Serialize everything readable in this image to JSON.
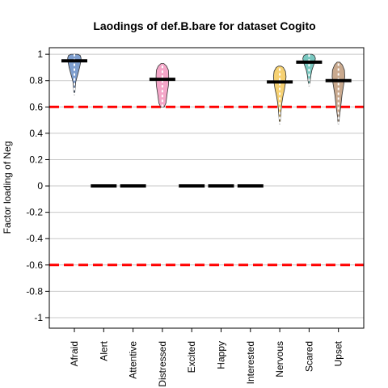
{
  "chart_data": {
    "type": "violin",
    "title": "Laodings of def.B.bare for dataset Cogito",
    "xlabel": "",
    "ylabel": "Factor loading of Neg",
    "ylim": [
      -1.08,
      1.05
    ],
    "yticks": [
      1,
      0.8,
      0.6,
      0.4,
      0.2,
      0,
      -0.2,
      -0.4,
      -0.6,
      -0.8,
      -1
    ],
    "ytick_labels": [
      "1",
      "0.8",
      "0.6",
      "0.4",
      "0.2",
      "0",
      "-0.2",
      "-0.4",
      "-0.6",
      "-0.8",
      "-1"
    ],
    "grid": true,
    "reference_lines": [
      {
        "y": 0.6,
        "color": "#ff0000",
        "style": "dashed"
      },
      {
        "y": -0.6,
        "color": "#ff0000",
        "style": "dashed"
      }
    ],
    "categories": [
      "Afraid",
      "Alert",
      "Attentive",
      "Distressed",
      "Excited",
      "Happy",
      "Interested",
      "Nervous",
      "Scared",
      "Upset"
    ],
    "medians": [
      0.95,
      0,
      0,
      0.81,
      0,
      0,
      0,
      0.79,
      0.94,
      0.8
    ],
    "violins": [
      {
        "category": "Afraid",
        "color": "#7f9fcf",
        "profile": [
          [
            0.69,
            0.01
          ],
          [
            0.74,
            0.02
          ],
          [
            0.79,
            0.04
          ],
          [
            0.82,
            0.07
          ],
          [
            0.86,
            0.11
          ],
          [
            0.9,
            0.15
          ],
          [
            0.94,
            0.18
          ],
          [
            0.97,
            0.19
          ],
          [
            0.99,
            0.17
          ],
          [
            1.0,
            0.1
          ]
        ]
      },
      {
        "category": "Distressed",
        "color": "#f4a6c8",
        "profile": [
          [
            0.6,
            0.05
          ],
          [
            0.63,
            0.1
          ],
          [
            0.67,
            0.12
          ],
          [
            0.71,
            0.14
          ],
          [
            0.76,
            0.17
          ],
          [
            0.8,
            0.18
          ],
          [
            0.84,
            0.18
          ],
          [
            0.88,
            0.17
          ],
          [
            0.91,
            0.12
          ],
          [
            0.93,
            0.04
          ]
        ]
      },
      {
        "category": "Nervous",
        "color": "#f6d172",
        "profile": [
          [
            0.47,
            0.01
          ],
          [
            0.52,
            0.02
          ],
          [
            0.58,
            0.04
          ],
          [
            0.63,
            0.06
          ],
          [
            0.68,
            0.09
          ],
          [
            0.73,
            0.13
          ],
          [
            0.78,
            0.16
          ],
          [
            0.83,
            0.18
          ],
          [
            0.87,
            0.16
          ],
          [
            0.9,
            0.1
          ],
          [
            0.91,
            0.04
          ]
        ]
      },
      {
        "category": "Scared",
        "color": "#78c8c0",
        "profile": [
          [
            0.76,
            0.01
          ],
          [
            0.8,
            0.03
          ],
          [
            0.84,
            0.05
          ],
          [
            0.88,
            0.08
          ],
          [
            0.91,
            0.12
          ],
          [
            0.94,
            0.16
          ],
          [
            0.97,
            0.18
          ],
          [
            0.99,
            0.15
          ],
          [
            1.0,
            0.08
          ]
        ]
      },
      {
        "category": "Upset",
        "color": "#c9a98e",
        "profile": [
          [
            0.47,
            0.01
          ],
          [
            0.53,
            0.03
          ],
          [
            0.59,
            0.06
          ],
          [
            0.64,
            0.08
          ],
          [
            0.69,
            0.1
          ],
          [
            0.74,
            0.13
          ],
          [
            0.79,
            0.16
          ],
          [
            0.83,
            0.18
          ],
          [
            0.88,
            0.17
          ],
          [
            0.92,
            0.11
          ],
          [
            0.94,
            0.04
          ]
        ]
      }
    ]
  }
}
